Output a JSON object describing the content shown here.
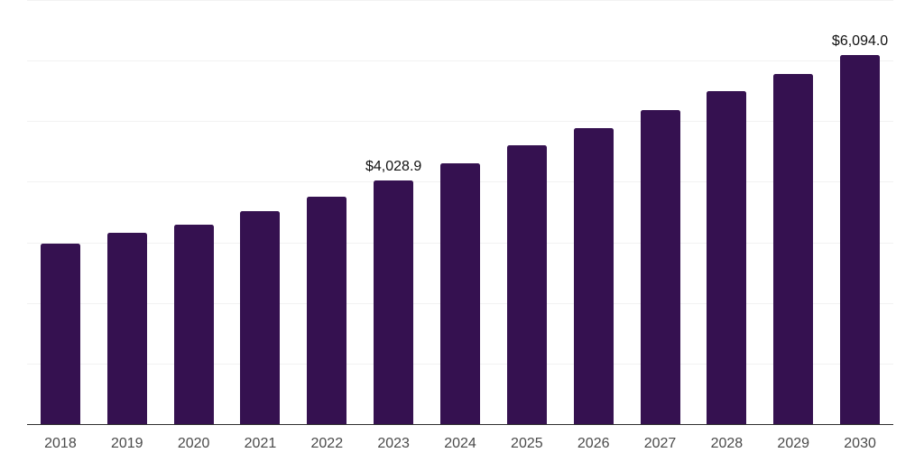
{
  "chart_data": {
    "type": "bar",
    "title": "",
    "xlabel": "",
    "ylabel": "",
    "categories": [
      "2018",
      "2019",
      "2020",
      "2021",
      "2022",
      "2023",
      "2024",
      "2025",
      "2026",
      "2027",
      "2028",
      "2029",
      "2030"
    ],
    "values": [
      2981,
      3159,
      3293,
      3509,
      3746,
      4028.9,
      4306,
      4598,
      4886,
      5187,
      5489,
      5786,
      6094.0
    ],
    "data_labels": {
      "2023": "$4,028.9",
      "2030": "$6,094.0"
    },
    "ylim": [
      0,
      7000
    ],
    "gridline_step": 1000,
    "grid": "horizontal",
    "legend": "none",
    "colors": {
      "bar": "#351150",
      "gridline": "#f2f2f2",
      "axis_line": "#2e2e2e",
      "data_label": "#111111",
      "tick_label": "#4a4a4a",
      "background": "#ffffff"
    }
  }
}
